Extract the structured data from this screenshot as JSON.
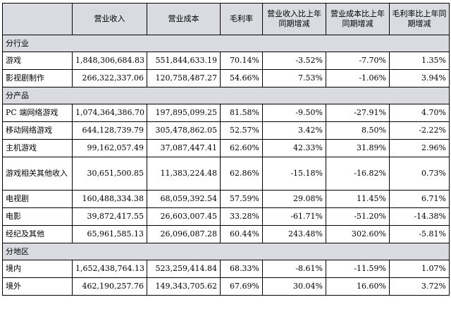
{
  "header": [
    "",
    "营业收入",
    "营业成本",
    "毛利率",
    "营业收入比上年同期增减",
    "营业成本比上年同期增减",
    "毛利率比上年同期增减"
  ],
  "sections": [
    {
      "title": "分行业",
      "rows": [
        {
          "label": "游戏",
          "revenue": "1,848,306,684.83",
          "cost": "551,844,633.19",
          "margin": "70.14%",
          "rev_change": "-3.52%",
          "cost_change": "-7.70%",
          "margin_change": "1.35%"
        },
        {
          "label": "影视剧制作",
          "revenue": "266,322,337.06",
          "cost": "120,758,487.27",
          "margin": "54.66%",
          "rev_change": "7.53%",
          "cost_change": "-1.06%",
          "margin_change": "3.94%"
        }
      ]
    },
    {
      "title": "分产品",
      "rows": [
        {
          "label": "PC 端网络游戏",
          "revenue": "1,074,364,386.70",
          "cost": "197,895,099.25",
          "margin": "81.58%",
          "rev_change": "-9.50%",
          "cost_change": "-27.91%",
          "margin_change": "4.70%"
        },
        {
          "label": "移动网络游戏",
          "revenue": "644,128,739.79",
          "cost": "305,478,862.05",
          "margin": "52.57%",
          "rev_change": "3.42%",
          "cost_change": "8.50%",
          "margin_change": "-2.22%"
        },
        {
          "label": "主机游戏",
          "revenue": "99,162,057.49",
          "cost": "37,087,447.41",
          "margin": "62.60%",
          "rev_change": "42.33%",
          "cost_change": "31.89%",
          "margin_change": "2.96%"
        },
        {
          "label": "游戏相关其他收入",
          "revenue": "30,651,500.85",
          "cost": "11,383,224.48",
          "margin": "62.86%",
          "rev_change": "-15.18%",
          "cost_change": "-16.82%",
          "margin_change": "0.73%",
          "tall": true
        },
        {
          "label": "电视剧",
          "revenue": "160,488,334.38",
          "cost": "68,059,392.54",
          "margin": "57.59%",
          "rev_change": "29.08%",
          "cost_change": "11.45%",
          "margin_change": "6.71%"
        },
        {
          "label": "电影",
          "revenue": "39,872,417.55",
          "cost": "26,603,007.45",
          "margin": "33.28%",
          "rev_change": "-61.71%",
          "cost_change": "-51.20%",
          "margin_change": "-14.38%"
        },
        {
          "label": "经纪及其他",
          "revenue": "65,961,585.13",
          "cost": "26,096,087.28",
          "margin": "60.44%",
          "rev_change": "243.48%",
          "cost_change": "302.60%",
          "margin_change": "-5.81%"
        }
      ]
    },
    {
      "title": "分地区",
      "rows": [
        {
          "label": "境内",
          "revenue": "1,652,438,764.13",
          "cost": "523,259,414.84",
          "margin": "68.33%",
          "rev_change": "-8.61%",
          "cost_change": "-11.59%",
          "margin_change": "1.07%"
        },
        {
          "label": "境外",
          "revenue": "462,190,257.76",
          "cost": "149,343,705.62",
          "margin": "67.69%",
          "rev_change": "30.04%",
          "cost_change": "16.60%",
          "margin_change": "3.72%"
        }
      ]
    }
  ]
}
